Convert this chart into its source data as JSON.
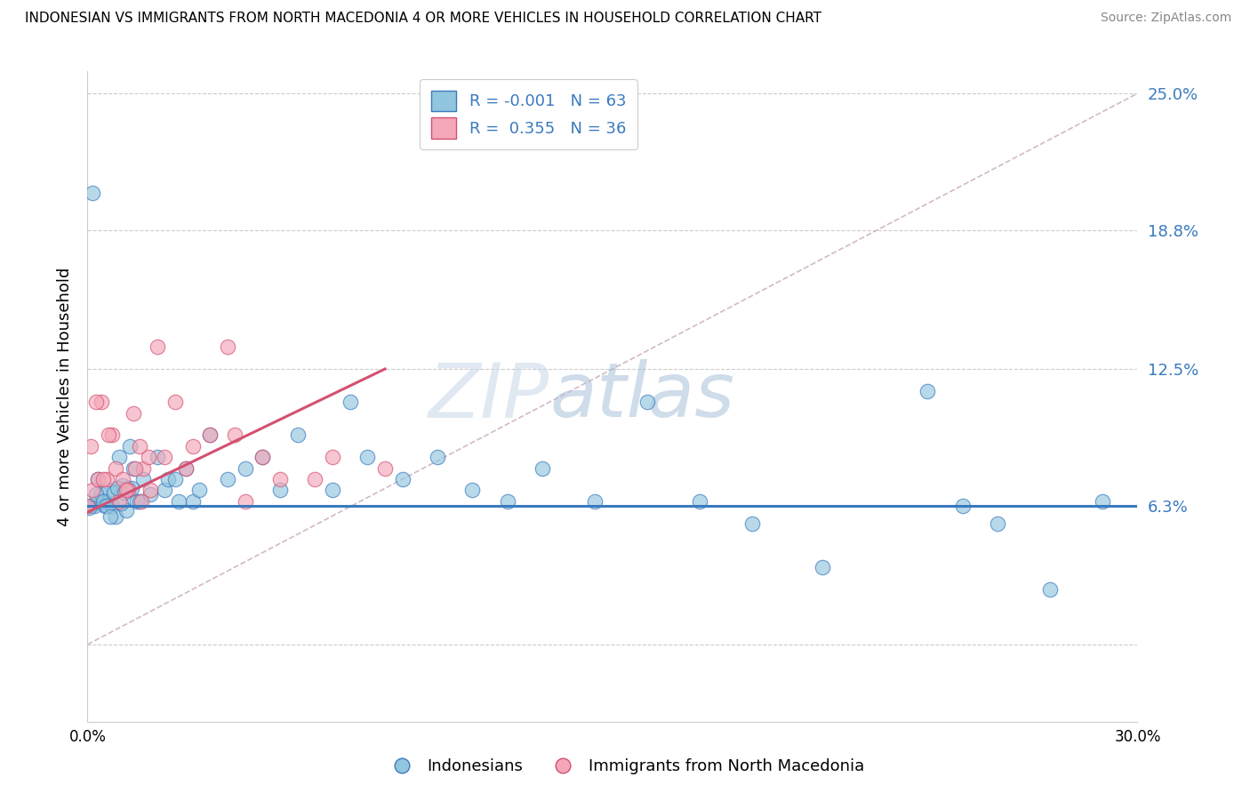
{
  "title": "INDONESIAN VS IMMIGRANTS FROM NORTH MACEDONIA 4 OR MORE VEHICLES IN HOUSEHOLD CORRELATION CHART",
  "source": "Source: ZipAtlas.com",
  "ylabel_label": "4 or more Vehicles in Household",
  "legend_label1": "Indonesians",
  "legend_label2": "Immigrants from North Macedonia",
  "R1": "-0.001",
  "N1": "63",
  "R2": "0.355",
  "N2": "36",
  "color_blue": "#92c5de",
  "color_pink": "#f4a7b9",
  "trendline_blue": "#3a7abf",
  "trendline_pink": "#d45070",
  "trendline_dashed_color": "#c8a8b8",
  "watermark_zip": "ZIP",
  "watermark_atlas": "atlas",
  "background": "#ffffff",
  "xlim": [
    0.0,
    30.0
  ],
  "ylim": [
    0.0,
    25.0
  ],
  "yticks": [
    0.0,
    6.3,
    12.5,
    18.8,
    25.0
  ],
  "ytick_labels": [
    "",
    "6.3%",
    "12.5%",
    "18.8%",
    "25.0%"
  ],
  "xticks": [
    0.0,
    30.0
  ],
  "xtick_labels": [
    "0.0%",
    "30.0%"
  ],
  "indonesian_x": [
    0.1,
    0.2,
    0.3,
    0.3,
    0.4,
    0.5,
    0.5,
    0.6,
    0.7,
    0.8,
    0.9,
    1.0,
    1.1,
    1.2,
    1.3,
    1.4,
    1.5,
    1.6,
    1.8,
    2.0,
    2.2,
    2.3,
    2.5,
    2.8,
    3.0,
    3.2,
    3.5,
    4.0,
    4.5,
    5.0,
    5.5,
    6.0,
    7.0,
    7.5,
    8.0,
    9.0,
    10.0,
    11.0,
    12.0,
    13.0,
    14.5,
    16.0,
    17.5,
    19.0,
    21.0,
    24.0,
    25.0,
    26.0,
    27.5,
    29.0,
    0.05,
    0.15,
    0.25,
    0.45,
    0.55,
    0.65,
    0.75,
    0.85,
    0.95,
    1.05,
    1.15,
    1.25,
    2.6
  ],
  "indonesian_y": [
    6.3,
    6.3,
    7.5,
    6.5,
    6.8,
    6.5,
    6.3,
    7.0,
    6.3,
    5.8,
    8.5,
    7.2,
    6.1,
    9.0,
    8.0,
    6.5,
    6.5,
    7.5,
    6.8,
    8.5,
    7.0,
    7.5,
    7.5,
    8.0,
    6.5,
    7.0,
    9.5,
    7.5,
    8.0,
    8.5,
    7.0,
    9.5,
    7.0,
    11.0,
    8.5,
    7.5,
    8.5,
    7.0,
    6.5,
    8.0,
    6.5,
    11.0,
    6.5,
    5.5,
    3.5,
    11.5,
    6.3,
    5.5,
    2.5,
    6.5,
    6.2,
    20.5,
    6.8,
    6.5,
    6.3,
    5.8,
    6.9,
    7.1,
    6.4,
    6.9,
    7.1,
    7.1,
    6.5
  ],
  "northmac_x": [
    0.0,
    0.15,
    0.3,
    0.4,
    0.55,
    0.7,
    0.8,
    1.0,
    1.15,
    1.3,
    1.5,
    1.6,
    1.8,
    2.0,
    2.5,
    3.0,
    3.5,
    4.0,
    4.5,
    5.0,
    5.5,
    6.5,
    7.0,
    8.5,
    0.1,
    0.25,
    0.45,
    0.6,
    0.9,
    1.1,
    1.35,
    1.55,
    1.75,
    2.2,
    2.8,
    4.2
  ],
  "northmac_y": [
    6.3,
    7.0,
    7.5,
    11.0,
    7.5,
    9.5,
    8.0,
    7.5,
    7.0,
    10.5,
    9.0,
    8.0,
    7.0,
    13.5,
    11.0,
    9.0,
    9.5,
    13.5,
    6.5,
    8.5,
    7.5,
    7.5,
    8.5,
    8.0,
    9.0,
    11.0,
    7.5,
    9.5,
    6.5,
    7.0,
    8.0,
    6.5,
    8.5,
    8.5,
    8.0,
    9.5
  ],
  "indo_trendline_x": [
    0.0,
    30.0
  ],
  "indo_trendline_y": [
    6.3,
    6.3
  ],
  "nm_trendline_start_x": 0.0,
  "nm_trendline_start_y": 6.0,
  "nm_trendline_end_x": 8.5,
  "nm_trendline_end_y": 12.5,
  "diag_line_x": [
    0.0,
    30.0
  ],
  "diag_line_y": [
    0.0,
    25.0
  ]
}
